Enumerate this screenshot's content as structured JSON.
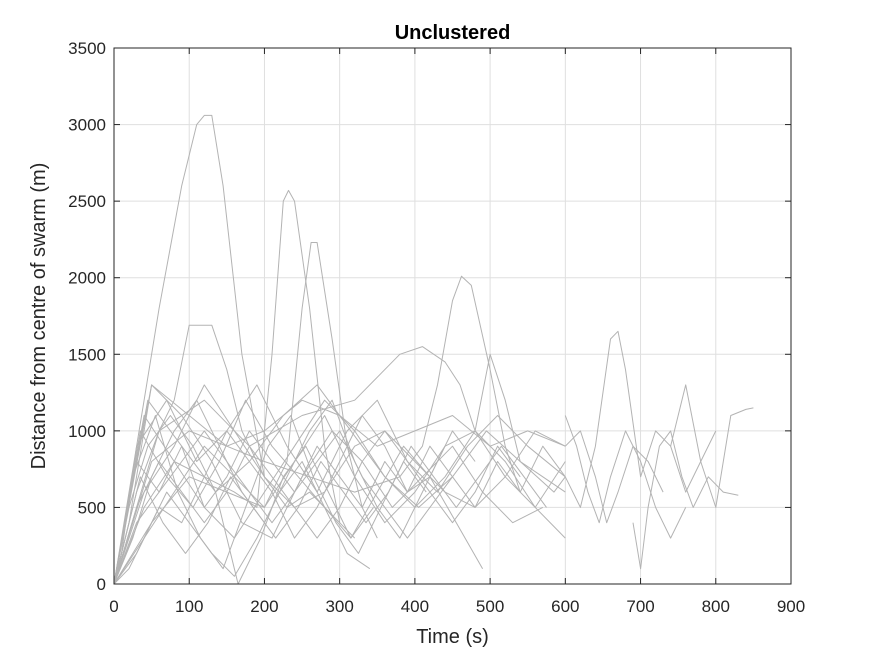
{
  "chart_data": {
    "type": "line",
    "title": "Unclustered",
    "xlabel": "Time (s)",
    "ylabel": "Distance from centre of swarm (m)",
    "xlim": [
      0,
      900
    ],
    "ylim": [
      0,
      3500
    ],
    "xticks": [
      0,
      100,
      200,
      300,
      400,
      500,
      600,
      700,
      800,
      900
    ],
    "yticks": [
      0,
      500,
      1000,
      1500,
      2000,
      2500,
      3000,
      3500
    ],
    "grid": true,
    "legend": "none",
    "line_color": "#b3b3b3",
    "series": [
      {
        "x": [
          0,
          10,
          30,
          60,
          90,
          110,
          120,
          130,
          145,
          170,
          200
        ],
        "y": [
          0,
          200,
          900,
          1800,
          2600,
          3000,
          3060,
          3060,
          2600,
          1500,
          700
        ]
      },
      {
        "x": [
          0,
          30,
          60,
          80,
          100,
          130,
          150,
          170,
          200,
          230,
          260,
          300
        ],
        "y": [
          0,
          600,
          1000,
          1200,
          1690,
          1690,
          1400,
          1000,
          700,
          500,
          600,
          400
        ]
      },
      {
        "x": [
          0,
          40,
          80,
          120,
          160,
          190,
          210,
          225,
          232,
          240,
          260,
          280,
          300,
          320
        ],
        "y": [
          0,
          500,
          800,
          700,
          600,
          500,
          1500,
          2500,
          2570,
          2500,
          1800,
          900,
          400,
          300
        ]
      },
      {
        "x": [
          0,
          50,
          100,
          150,
          200,
          230,
          250,
          262,
          270,
          290,
          310,
          330,
          350
        ],
        "y": [
          0,
          400,
          700,
          600,
          500,
          800,
          1800,
          2230,
          2230,
          1600,
          900,
          500,
          300
        ]
      },
      {
        "x": [
          0,
          50,
          100,
          150,
          200,
          260,
          320,
          380,
          410,
          430,
          450,
          462,
          475,
          500,
          520,
          540
        ],
        "y": [
          0,
          800,
          1000,
          900,
          800,
          700,
          600,
          700,
          900,
          1300,
          1850,
          2010,
          1950,
          1400,
          900,
          600
        ]
      },
      {
        "x": [
          0,
          60,
          120,
          180,
          250,
          320,
          380,
          410,
          440,
          460,
          480,
          500,
          520,
          540,
          570,
          600
        ],
        "y": [
          0,
          1000,
          1200,
          900,
          1100,
          1200,
          1500,
          1550,
          1450,
          1300,
          1000,
          1500,
          1200,
          800,
          700,
          600
        ]
      },
      {
        "x": [
          600,
          620,
          640,
          660,
          670,
          680,
          700,
          720,
          740,
          760,
          780,
          800
        ],
        "y": [
          700,
          500,
          900,
          1600,
          1650,
          1400,
          700,
          1000,
          900,
          600,
          800,
          1000
        ]
      },
      {
        "x": [
          740,
          760,
          780,
          800,
          820,
          840,
          850
        ],
        "y": [
          900,
          1300,
          800,
          500,
          1100,
          1140,
          1150
        ]
      },
      {
        "x": [
          0,
          40,
          80,
          120,
          160,
          200,
          240,
          280,
          320,
          360,
          400,
          440,
          480,
          520,
          560,
          600
        ],
        "y": [
          0,
          300,
          600,
          900,
          700,
          500,
          800,
          1100,
          700,
          400,
          600,
          900,
          1000,
          700,
          500,
          800
        ]
      },
      {
        "x": [
          0,
          30,
          70,
          110,
          150,
          190,
          230,
          270,
          310,
          350,
          390,
          430,
          470,
          510,
          550,
          600
        ],
        "y": [
          0,
          900,
          1200,
          800,
          1000,
          1300,
          900,
          600,
          1000,
          1200,
          800,
          600,
          900,
          1100,
          900,
          700
        ]
      },
      {
        "x": [
          0,
          20,
          50,
          90,
          130,
          170,
          210,
          250,
          290,
          330,
          370,
          410,
          450,
          490,
          530,
          570
        ],
        "y": [
          0,
          400,
          1300,
          1100,
          800,
          400,
          300,
          700,
          1000,
          800,
          500,
          700,
          900,
          600,
          400,
          500
        ]
      },
      {
        "x": [
          0,
          25,
          55,
          85,
          115,
          145,
          175,
          205,
          235,
          265,
          295,
          325,
          355,
          385,
          415
        ],
        "y": [
          0,
          700,
          1100,
          600,
          300,
          100,
          500,
          900,
          1100,
          700,
          400,
          200,
          500,
          800,
          600
        ]
      },
      {
        "x": [
          0,
          30,
          60,
          90,
          120,
          150,
          180,
          210,
          240,
          270,
          300,
          330,
          360,
          390,
          420,
          450,
          480
        ],
        "y": [
          0,
          200,
          500,
          400,
          700,
          1000,
          800,
          600,
          300,
          500,
          800,
          1100,
          900,
          600,
          700,
          1000,
          800
        ]
      },
      {
        "x": [
          0,
          35,
          70,
          105,
          140,
          175,
          210,
          245,
          280,
          315,
          350,
          385,
          420,
          455,
          490
        ],
        "y": [
          0,
          1000,
          700,
          500,
          800,
          1200,
          900,
          700,
          500,
          300,
          600,
          900,
          700,
          400,
          100
        ]
      },
      {
        "x": [
          0,
          40,
          80,
          120,
          160,
          200,
          240,
          280,
          320,
          360,
          400,
          440,
          480,
          520,
          560,
          600
        ],
        "y": [
          0,
          600,
          900,
          1300,
          1000,
          700,
          500,
          600,
          900,
          1000,
          800,
          600,
          500,
          700,
          1000,
          900
        ]
      },
      {
        "x": [
          0,
          20,
          45,
          75,
          105,
          135,
          165,
          195,
          225,
          255,
          285,
          315,
          345
        ],
        "y": [
          0,
          500,
          900,
          1100,
          900,
          600,
          0,
          300,
          700,
          900,
          600,
          300,
          500
        ]
      },
      {
        "x": [
          0,
          30,
          60,
          90,
          120,
          150,
          180,
          210,
          240,
          270,
          300,
          330,
          360,
          390,
          420,
          450,
          480,
          510,
          540,
          570,
          600
        ],
        "y": [
          0,
          800,
          600,
          900,
          500,
          700,
          1000,
          800,
          600,
          900,
          700,
          500,
          800,
          600,
          900,
          700,
          500,
          800,
          600,
          900,
          700
        ]
      },
      {
        "x": [
          0,
          25,
          50,
          80,
          110,
          140,
          170,
          200,
          230,
          260,
          290,
          320,
          350,
          380,
          410,
          440
        ],
        "y": [
          0,
          300,
          700,
          1000,
          1200,
          900,
          600,
          400,
          700,
          1000,
          1200,
          800,
          500,
          300,
          600,
          900
        ]
      },
      {
        "x": [
          0,
          40,
          80,
          120,
          160,
          200,
          240,
          280,
          320,
          360,
          400,
          440,
          480,
          520,
          560,
          600
        ],
        "y": [
          0,
          1100,
          800,
          500,
          300,
          600,
          900,
          1200,
          1000,
          700,
          500,
          700,
          1000,
          800,
          500,
          300
        ]
      },
      {
        "x": [
          0,
          30,
          60,
          90,
          120,
          150,
          180,
          210,
          240,
          270,
          300,
          330,
          360,
          390,
          420,
          450,
          480,
          510,
          540
        ],
        "y": [
          0,
          500,
          800,
          600,
          400,
          600,
          900,
          700,
          500,
          300,
          500,
          800,
          1000,
          800,
          600,
          400,
          600,
          900,
          700
        ]
      },
      {
        "x": [
          0,
          20,
          40,
          70,
          100,
          130,
          160,
          190,
          220,
          250,
          280,
          310,
          340
        ],
        "y": [
          0,
          100,
          300,
          600,
          400,
          200,
          50,
          300,
          600,
          800,
          500,
          200,
          100
        ]
      },
      {
        "x": [
          0,
          45,
          90,
          135,
          180,
          225,
          270,
          315,
          360,
          405,
          450,
          495,
          540,
          585,
          600
        ],
        "y": [
          0,
          1200,
          900,
          600,
          800,
          1100,
          1300,
          1000,
          700,
          500,
          700,
          1000,
          800,
          600,
          700
        ]
      },
      {
        "x": [
          0,
          30,
          60,
          90,
          120,
          150,
          180,
          210,
          240,
          270,
          300,
          330,
          360,
          390,
          420,
          450
        ],
        "y": [
          0,
          400,
          600,
          800,
          1000,
          800,
          600,
          400,
          600,
          800,
          1000,
          700,
          500,
          300,
          500,
          700
        ]
      },
      {
        "x": [
          600,
          620,
          640,
          655,
          670,
          690,
          710,
          730
        ],
        "y": [
          900,
          1000,
          700,
          400,
          600,
          900,
          800,
          600
        ]
      },
      {
        "x": [
          600,
          615,
          630,
          645,
          660,
          680,
          700,
          720,
          740,
          760
        ],
        "y": [
          1100,
          900,
          600,
          400,
          700,
          1000,
          800,
          500,
          300,
          500
        ]
      },
      {
        "x": [
          690,
          700,
          710,
          725,
          740,
          755,
          770,
          790,
          810,
          830
        ],
        "y": [
          400,
          100,
          500,
          900,
          1000,
          700,
          500,
          700,
          600,
          580
        ]
      },
      {
        "x": [
          0,
          50,
          100,
          150,
          200,
          250,
          300,
          350,
          400,
          450,
          500,
          550,
          600
        ],
        "y": [
          0,
          1300,
          1100,
          900,
          1000,
          1200,
          1100,
          900,
          1000,
          1100,
          900,
          1000,
          900
        ]
      },
      {
        "x": [
          0,
          35,
          65,
          95,
          125,
          155,
          185,
          215,
          245,
          275,
          305,
          335,
          365,
          395,
          425,
          455,
          485,
          515,
          545,
          575
        ],
        "y": [
          0,
          700,
          400,
          200,
          400,
          700,
          500,
          300,
          500,
          800,
          600,
          400,
          600,
          900,
          700,
          500,
          700,
          900,
          700,
          500
        ]
      }
    ]
  }
}
